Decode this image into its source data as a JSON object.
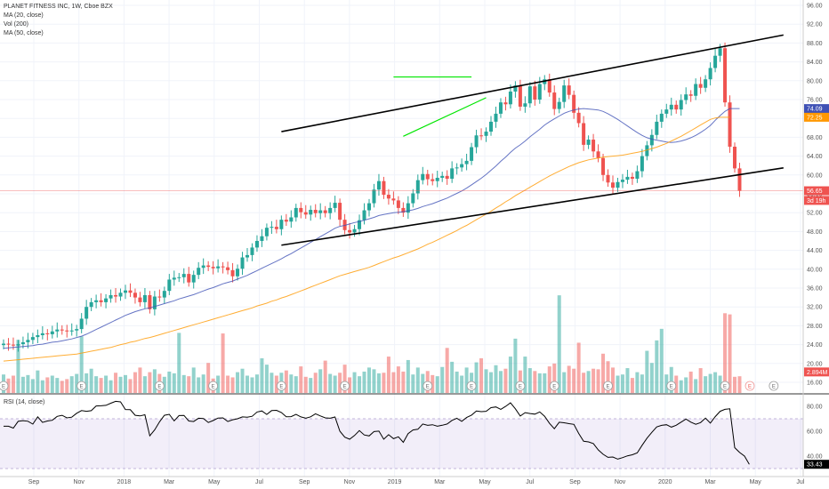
{
  "legend": {
    "symbol": "PLANET FITNESS INC, 1W, Cboe BZX",
    "ma20": "MA (20, close)",
    "vol": "Vol (200)",
    "ma50": "MA (50, close)"
  },
  "rsi_legend": "RSI (14, close)",
  "colors": {
    "up": "#26a69a",
    "down": "#ef5350",
    "ma20": "#3f51b5",
    "ma50": "#ff9800",
    "rsi_line": "#000000",
    "rsi_band": "#9575cd",
    "last_price": "#ef5350",
    "trend_green": "#00e600",
    "channel": "#000000"
  },
  "chart_data": {
    "type": "candlestick",
    "price_axis": {
      "min": 16,
      "max": 96,
      "ticks": [
        "96.00",
        "92.00",
        "88.00",
        "84.00",
        "80.00",
        "76.00",
        "72.00",
        "68.00",
        "64.00",
        "60.00",
        "56.00",
        "52.00",
        "48.00",
        "44.00",
        "40.00",
        "36.00",
        "32.00",
        "28.00",
        "24.00",
        "20.00",
        "16.00"
      ]
    },
    "time_axis": {
      "labels": [
        "Sep",
        "Nov",
        "2018",
        "Mar",
        "May",
        "Jul",
        "Sep",
        "Nov",
        "2019",
        "Mar",
        "May",
        "Jul",
        "Sep",
        "Nov",
        "2020",
        "Mar",
        "May",
        "Jul"
      ]
    },
    "price_badges": [
      {
        "label": "74.09",
        "value": 74.09,
        "color": "#3f51b5"
      },
      {
        "label": "72.25",
        "value": 72.25,
        "color": "#ff9800"
      },
      {
        "label": "56.65",
        "value": 56.65,
        "color": "#ef5350"
      },
      {
        "label": "3d 19h",
        "value": 54.6,
        "color": "#ef5350"
      },
      {
        "label": "2.894M",
        "value": 18.2,
        "color": "#ef5350"
      }
    ],
    "close": [
      24.2,
      24.0,
      23.8,
      24.1,
      24.5,
      25.0,
      25.6,
      26.0,
      26.4,
      26.2,
      26.8,
      27.2,
      27.0,
      26.8,
      27.0,
      27.3,
      29.5,
      32.0,
      33.0,
      33.4,
      33.0,
      33.8,
      34.5,
      34.2,
      35.0,
      35.5,
      35.0,
      34.0,
      33.0,
      34.5,
      31.5,
      34.2,
      34.0,
      35.4,
      37.8,
      38.2,
      38.3,
      39.0,
      37.2,
      38.8,
      40.3,
      40.8,
      40.5,
      40.2,
      40.6,
      40.4,
      39.8,
      38.5,
      40.1,
      42.5,
      43.0,
      44.6,
      46.0,
      47.0,
      48.8,
      49.0,
      48.5,
      50.5,
      50.1,
      51.0,
      53.0,
      52.1,
      51.6,
      52.6,
      51.9,
      52.5,
      51.9,
      53.0,
      54.1,
      50.5,
      48.3,
      47.8,
      48.5,
      50.4,
      52.5,
      54.0,
      56.9,
      58.7,
      55.8,
      55.0,
      54.6,
      53.0,
      52.0,
      54.0,
      56.1,
      58.9,
      60.2,
      59.1,
      58.7,
      59.4,
      59.8,
      59.2,
      61.4,
      61.6,
      62.3,
      63.0,
      65.9,
      68.4,
      68.3,
      69.2,
      71.3,
      73.0,
      75.4,
      75.0,
      77.7,
      79.0,
      74.5,
      75.2,
      78.8,
      76.0,
      79.3,
      80.3,
      77.5,
      74.0,
      75.5,
      79.0,
      77.0,
      73.2,
      71.0,
      66.4,
      67.5,
      65.0,
      63.6,
      60.0,
      58.4,
      57.3,
      58.5,
      59.0,
      59.6,
      59.2,
      60.8,
      64.0,
      66.3,
      68.5,
      71.3,
      73.0,
      73.9,
      74.9,
      73.9,
      75.9,
      77.1,
      76.8,
      79.3,
      78.5,
      80.3,
      82.7,
      85.3,
      86.9,
      75.4,
      66.0,
      61.4,
      56.65
    ],
    "ma20": [
      23.2,
      23.3,
      23.4,
      23.5,
      23.6,
      23.7,
      23.8,
      24.0,
      24.1,
      24.3,
      24.5,
      24.6,
      24.8,
      25.0,
      25.2,
      25.5,
      25.8,
      26.2,
      26.7,
      27.2,
      27.7,
      28.2,
      28.7,
      29.2,
      29.7,
      30.2,
      30.6,
      31.0,
      31.3,
      31.6,
      31.8,
      32.1,
      32.4,
      32.7,
      33.0,
      33.3,
      33.7,
      34.0,
      34.3,
      34.6,
      35.0,
      35.4,
      35.8,
      36.1,
      36.5,
      36.9,
      37.2,
      37.5,
      37.9,
      38.3,
      38.7,
      39.2,
      39.7,
      40.2,
      40.7,
      41.2,
      41.7,
      42.2,
      42.8,
      43.3,
      43.9,
      44.5,
      45.1,
      45.7,
      46.3,
      46.9,
      47.5,
      48.1,
      48.7,
      49.1,
      49.3,
      49.6,
      49.9,
      50.1,
      50.4,
      50.7,
      51.0,
      51.4,
      51.6,
      51.8,
      52.0,
      52.1,
      52.2,
      52.4,
      52.6,
      52.9,
      53.3,
      53.6,
      53.9,
      54.3,
      54.7,
      55.1,
      55.6,
      56.1,
      56.6,
      57.2,
      57.9,
      58.6,
      59.3,
      60.1,
      61.0,
      61.9,
      62.9,
      63.8,
      64.8,
      65.7,
      66.4,
      67.2,
      68.1,
      68.9,
      69.7,
      70.6,
      71.3,
      71.9,
      72.5,
      73.1,
      73.5,
      73.8,
      74.0,
      74.1,
      74.0,
      73.9,
      73.8,
      73.5,
      73.0,
      72.4,
      71.8,
      71.1,
      70.4,
      69.7,
      69.0,
      68.4,
      67.9,
      67.6,
      67.4,
      67.2,
      67.0,
      66.9,
      67.0,
      67.2,
      67.5,
      67.9,
      68.4,
      69.0,
      69.7,
      70.5,
      71.6,
      72.6,
      73.5,
      74.09,
      74.09,
      74.09
    ],
    "ma50": [
      20.5,
      20.6,
      20.7,
      20.8,
      20.9,
      21.0,
      21.1,
      21.2,
      21.3,
      21.4,
      21.5,
      21.6,
      21.7,
      21.8,
      21.9,
      22.0,
      22.2,
      22.4,
      22.6,
      22.8,
      23.0,
      23.2,
      23.4,
      23.7,
      24.0,
      24.2,
      24.5,
      24.7,
      25.0,
      25.3,
      25.5,
      25.8,
      26.1,
      26.4,
      26.7,
      27.0,
      27.3,
      27.6,
      27.9,
      28.2,
      28.5,
      28.8,
      29.1,
      29.4,
      29.7,
      30.0,
      30.3,
      30.6,
      30.9,
      31.2,
      31.5,
      31.8,
      32.2,
      32.5,
      32.8,
      33.2,
      33.5,
      33.9,
      34.2,
      34.6,
      35.0,
      35.4,
      35.8,
      36.2,
      36.6,
      37.0,
      37.4,
      37.8,
      38.2,
      38.6,
      38.9,
      39.2,
      39.5,
      39.8,
      40.1,
      40.4,
      40.8,
      41.2,
      41.6,
      42.0,
      42.4,
      42.7,
      43.1,
      43.5,
      43.9,
      44.3,
      44.8,
      45.3,
      45.7,
      46.2,
      46.7,
      47.2,
      47.7,
      48.2,
      48.8,
      49.3,
      49.9,
      50.5,
      51.1,
      51.7,
      52.3,
      53.0,
      53.6,
      54.3,
      54.9,
      55.6,
      56.2,
      56.8,
      57.4,
      58.0,
      58.6,
      59.2,
      59.8,
      60.3,
      60.8,
      61.3,
      61.8,
      62.2,
      62.6,
      62.9,
      63.2,
      63.4,
      63.6,
      63.8,
      63.9,
      64.0,
      64.1,
      64.2,
      64.4,
      64.6,
      64.8,
      65.0,
      65.3,
      65.6,
      65.9,
      66.3,
      66.7,
      67.2,
      67.7,
      68.2,
      68.8,
      69.4,
      70.0,
      70.6,
      71.2,
      71.8,
      72.1,
      72.25,
      72.25,
      72.25
    ],
    "volume": [
      3.2,
      2.5,
      3.0,
      9.2,
      2.8,
      3.1,
      2.4,
      3.9,
      2.2,
      2.7,
      3.0,
      2.6,
      2.1,
      2.4,
      2.9,
      3.3,
      9.8,
      3.4,
      4.2,
      2.9,
      2.6,
      3.0,
      2.2,
      3.5,
      2.8,
      3.1,
      2.4,
      3.6,
      4.4,
      2.9,
      3.6,
      4.1,
      3.3,
      2.8,
      3.7,
      3.4,
      10.4,
      3.1,
      2.9,
      4.4,
      2.7,
      3.2,
      5.2,
      2.5,
      3.0,
      10.3,
      3.0,
      2.7,
      3.6,
      4.2,
      3.0,
      2.7,
      3.2,
      6.0,
      4.9,
      3.5,
      3.0,
      3.5,
      3.9,
      3.2,
      2.9,
      4.6,
      2.8,
      2.6,
      3.5,
      4.1,
      5.6,
      3.3,
      3.0,
      3.5,
      4.9,
      2.7,
      3.6,
      2.9,
      3.7,
      4.4,
      4.1,
      3.4,
      3.5,
      6.3,
      3.6,
      4.6,
      3.7,
      5.7,
      3.2,
      4.4,
      3.3,
      3.8,
      3.1,
      2.9,
      4.5,
      7.8,
      5.4,
      3.7,
      3.0,
      4.4,
      3.5,
      5.3,
      6.0,
      4.1,
      3.6,
      4.8,
      3.8,
      4.2,
      6.3,
      9.4,
      3.9,
      6.3,
      4.3,
      3.8,
      3.4,
      3.4,
      4.6,
      5.1,
      16.9,
      3.6,
      4.7,
      4.2,
      8.7,
      3.5,
      3.8,
      4.2,
      4.1,
      6.8,
      5.5,
      4.4,
      3.0,
      3.2,
      4.3,
      2.6,
      3.6,
      3.2,
      7.3,
      5.2,
      9.1,
      11.1,
      3.2,
      4.5,
      3.0,
      2.2,
      2.7,
      3.7,
      2.4,
      4.3,
      2.9,
      3.3,
      3.6,
      3.0,
      13.8,
      13.6,
      2.8,
      2.894
    ],
    "rsi": [
      64.0,
      64.0,
      62.5,
      67.9,
      68.5,
      68.0,
      65.7,
      71.6,
      67.1,
      68.2,
      68.8,
      71.9,
      72.8,
      70.7,
      71.3,
      74.4,
      76.6,
      76.0,
      76.5,
      80.3,
      80.4,
      80.8,
      82.5,
      84.0,
      83.6,
      77.4,
      77.3,
      72.8,
      72.3,
      73.2,
      56.3,
      61.1,
      67.6,
      72.8,
      73.6,
      68.3,
      72.6,
      72.7,
      68.2,
      67.8,
      70.4,
      70.2,
      67.0,
      68.6,
      70.6,
      70.7,
      67.8,
      69.2,
      70.0,
      71.5,
      71.3,
      72.0,
      75.4,
      76.3,
      73.5,
      76.6,
      76.8,
      75.0,
      71.6,
      71.7,
      73.6,
      71.5,
      70.4,
      71.6,
      74.0,
      72.3,
      70.7,
      70.4,
      71.4,
      60.0,
      55.2,
      53.6,
      56.6,
      60.5,
      57.0,
      56.2,
      59.7,
      60.1,
      53.6,
      57.2,
      54.0,
      55.5,
      51.1,
      58.1,
      61.0,
      61.6,
      65.8,
      64.7,
      65.2,
      64.0,
      64.8,
      65.8,
      68.7,
      70.4,
      67.9,
      71.0,
      72.9,
      76.2,
      75.7,
      76.0,
      78.9,
      79.5,
      77.6,
      79.9,
      82.8,
      78.0,
      72.2,
      74.9,
      74.2,
      73.7,
      75.5,
      72.0,
      66.3,
      62.0,
      67.2,
      66.8,
      66.1,
      65.5,
      58.2,
      51.9,
      51.4,
      50.1,
      45.0,
      41.5,
      39.0,
      39.3,
      37.6,
      38.8,
      40.2,
      41.1,
      42.6,
      48.7,
      54.4,
      59.1,
      63.4,
      64.7,
      65.2,
      63.3,
      64.8,
      67.3,
      69.8,
      67.3,
      65.6,
      66.9,
      70.5,
      66.5,
      71.7,
      76.0,
      77.6,
      78.0,
      46.8,
      42.9,
      40.0,
      33.43
    ],
    "rsi_axis": {
      "ticks": [
        "80.00",
        "60.00",
        "40.00"
      ],
      "upper": 70,
      "lower": 30,
      "last": "33.43"
    },
    "trendlines": [
      {
        "id": "channel-top",
        "x1": 57,
        "y1": 69.2,
        "x2": 160,
        "y2": 89.7
      },
      {
        "id": "channel-bottom",
        "x1": 57,
        "y1": 45.1,
        "x2": 160,
        "y2": 61.5
      },
      {
        "id": "green-resistance",
        "x1": 80,
        "y1": 80.8,
        "x2": 96,
        "y2": 80.8
      },
      {
        "id": "green-support",
        "x1": 82,
        "y1": 68.2,
        "x2": 99,
        "y2": 76.4
      }
    ],
    "earnings_labels": [
      "E",
      "E",
      "E",
      "E",
      "E",
      "E",
      "E",
      "E",
      "E",
      "E",
      "E",
      "E",
      "E",
      "E",
      "E"
    ]
  }
}
